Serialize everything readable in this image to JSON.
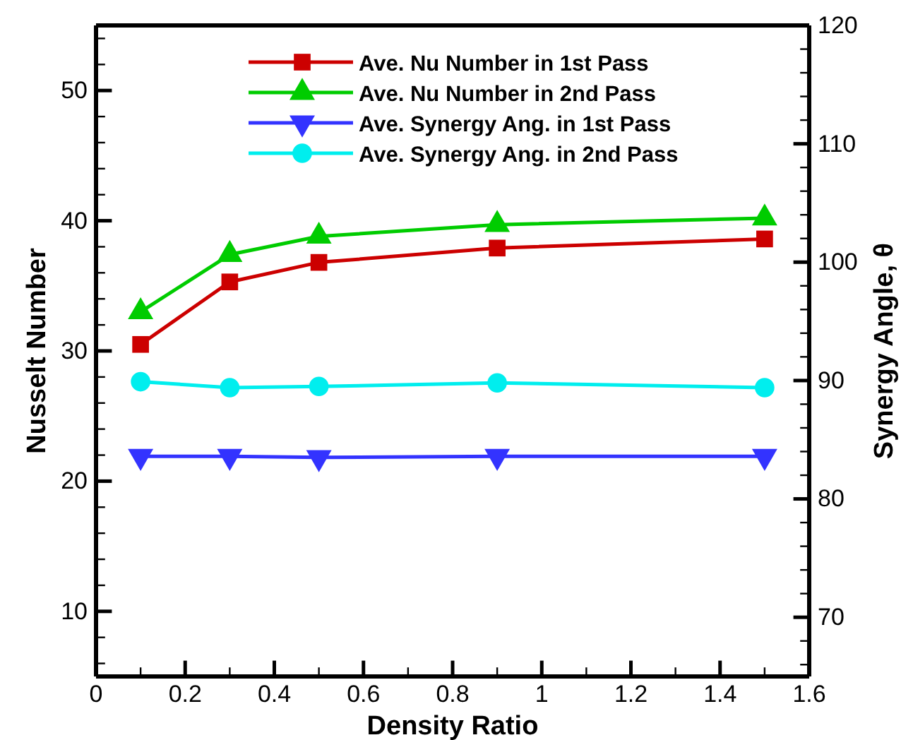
{
  "chart_data": {
    "type": "line",
    "xlabel": "Density Ratio",
    "ylabel": "Nusselt Number",
    "y2label": "Synergy Angle, θ",
    "x": [
      0.1,
      0.3,
      0.5,
      0.9,
      1.5
    ],
    "xlim": [
      0,
      1.6
    ],
    "xticks": [
      0,
      {
        "value": 0.1,
        "label": null
      },
      0.2,
      {
        "value": 0.3,
        "label": null
      },
      0.4,
      {
        "value": 0.5,
        "label": null
      },
      0.6,
      {
        "value": 0.7,
        "label": null
      },
      0.8,
      {
        "value": 0.9,
        "label": null
      },
      1,
      {
        "value": 1.1,
        "label": null
      },
      1.2,
      {
        "value": 1.3,
        "label": null
      },
      1.4,
      {
        "value": 1.5,
        "label": null
      },
      1.6
    ],
    "ylim": [
      5,
      55
    ],
    "yticks": [
      {
        "value": 6,
        "label": null
      },
      {
        "value": 8,
        "label": null
      },
      10,
      {
        "value": 12,
        "label": null
      },
      {
        "value": 14,
        "label": null
      },
      {
        "value": 16,
        "label": null
      },
      {
        "value": 18,
        "label": null
      },
      20,
      {
        "value": 22,
        "label": null
      },
      {
        "value": 24,
        "label": null
      },
      {
        "value": 26,
        "label": null
      },
      {
        "value": 28,
        "label": null
      },
      30,
      {
        "value": 32,
        "label": null
      },
      {
        "value": 34,
        "label": null
      },
      {
        "value": 36,
        "label": null
      },
      {
        "value": 38,
        "label": null
      },
      40,
      {
        "value": 42,
        "label": null
      },
      {
        "value": 44,
        "label": null
      },
      {
        "value": 46,
        "label": null
      },
      {
        "value": 48,
        "label": null
      },
      50,
      {
        "value": 52,
        "label": null
      },
      {
        "value": 54,
        "label": null
      }
    ],
    "y2lim": [
      65,
      120
    ],
    "y2ticks": [
      {
        "value": 66,
        "label": null
      },
      {
        "value": 68,
        "label": null
      },
      70,
      {
        "value": 72,
        "label": null
      },
      {
        "value": 74,
        "label": null
      },
      {
        "value": 76,
        "label": null
      },
      {
        "value": 78,
        "label": null
      },
      80,
      {
        "value": 82,
        "label": null
      },
      {
        "value": 84,
        "label": null
      },
      {
        "value": 86,
        "label": null
      },
      {
        "value": 88,
        "label": null
      },
      90,
      {
        "value": 92,
        "label": null
      },
      {
        "value": 94,
        "label": null
      },
      {
        "value": 96,
        "label": null
      },
      {
        "value": 98,
        "label": null
      },
      100,
      {
        "value": 102,
        "label": null
      },
      {
        "value": 104,
        "label": null
      },
      {
        "value": 106,
        "label": null
      },
      {
        "value": 108,
        "label": null
      },
      110,
      {
        "value": 112,
        "label": null
      },
      {
        "value": 114,
        "label": null
      },
      {
        "value": 116,
        "label": null
      },
      {
        "value": 118,
        "label": null
      },
      120
    ],
    "legend": "top",
    "series": [
      {
        "name": "Ave. Nu Number in 1st Pass",
        "color": "#cc0000",
        "marker": "square",
        "values": [
          30.5,
          35.3,
          36.8,
          37.9,
          38.6
        ]
      },
      {
        "name": "Ave. Nu Number in 2nd Pass",
        "color": "#00cc00",
        "marker": "triangle",
        "values": [
          33.0,
          37.4,
          38.8,
          39.7,
          40.2
        ]
      },
      {
        "name": "Ave. Synergy Ang. in 1st Pass",
        "color": "#3333ff",
        "marker": "triangle-down",
        "axis": "y2",
        "values": [
          83.6,
          83.6,
          83.5,
          83.6,
          83.6
        ]
      },
      {
        "name": "Ave. Synergy Ang. in 2nd Pass",
        "color": "#00eeee",
        "marker": "circle",
        "axis": "y2",
        "values": [
          89.9,
          89.4,
          89.5,
          89.8,
          89.4
        ]
      }
    ]
  }
}
